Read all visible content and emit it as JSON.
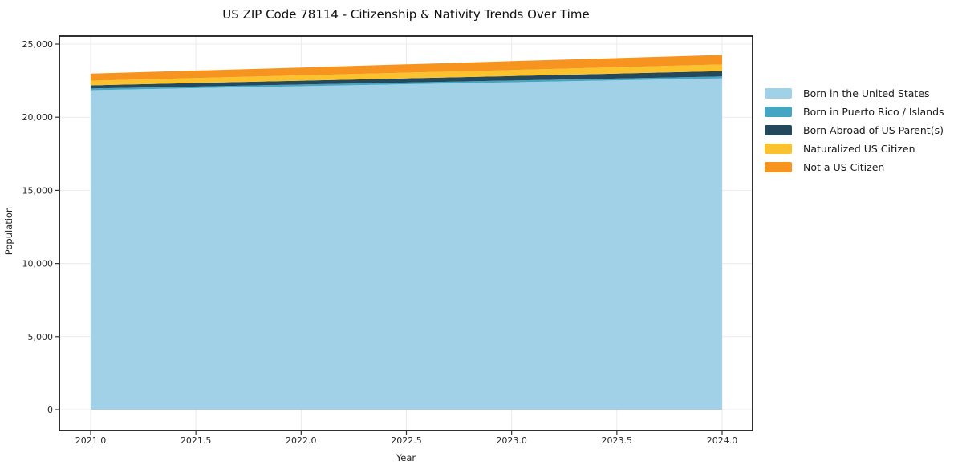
{
  "title": "US ZIP Code 78114 - Citizenship & Nativity Trends Over Time",
  "axes": {
    "x_label": "Year",
    "y_label": "Population",
    "x_tick_labels": [
      "2021.0",
      "2021.5",
      "2022.0",
      "2022.5",
      "2023.0",
      "2023.5",
      "2024.0"
    ],
    "y_tick_labels": [
      "0",
      "5,000",
      "10,000",
      "15,000",
      "20,000",
      "25,000"
    ]
  },
  "chart_data": {
    "type": "area",
    "stacked": true,
    "title": "US ZIP Code 78114 - Citizenship & Nativity Trends Over Time",
    "xlabel": "Year",
    "ylabel": "Population",
    "xlim": [
      2021.0,
      2024.0
    ],
    "ylim": [
      0,
      25000
    ],
    "x_ticks": [
      2021.0,
      2021.5,
      2022.0,
      2022.5,
      2023.0,
      2023.5,
      2024.0
    ],
    "y_ticks": [
      0,
      5000,
      10000,
      15000,
      20000,
      25000
    ],
    "grid": true,
    "legend_position": "right-outside",
    "x": [
      2021,
      2022,
      2023,
      2024
    ],
    "series": [
      {
        "name": "Born in the United States",
        "color": "#a1d1e7",
        "values": [
          21850,
          22120,
          22390,
          22660
        ]
      },
      {
        "name": "Born in Puerto Rico / Islands",
        "color": "#45a6c4",
        "values": [
          110,
          115,
          120,
          130
        ]
      },
      {
        "name": "Born Abroad of US Parent(s)",
        "color": "#24495c",
        "values": [
          220,
          265,
          310,
          360
        ]
      },
      {
        "name": "Naturalized US Citizen",
        "color": "#fcc22e",
        "values": [
          320,
          365,
          410,
          460
        ]
      },
      {
        "name": "Not a US Citizen",
        "color": "#f7941f",
        "values": [
          480,
          535,
          600,
          650
        ]
      }
    ],
    "colors": {
      "grid": "#ebebeb",
      "spine": "#1a1a1a",
      "tick": "#333333"
    }
  }
}
